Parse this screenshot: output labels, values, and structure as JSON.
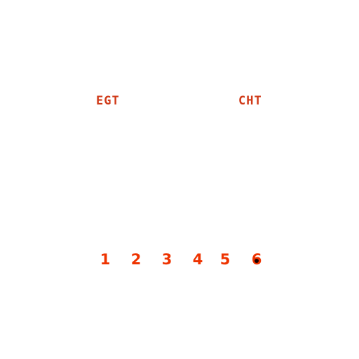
{
  "colors": {
    "background": "#ffffff",
    "label": "#d03a18",
    "cylinder": "#ee3300",
    "selected_marker": "#1a0000"
  },
  "labels": {
    "egt": "EGT",
    "cht": "CHT"
  },
  "cylinders": [
    {
      "label": "1",
      "selected": false
    },
    {
      "label": "2",
      "selected": false
    },
    {
      "label": "3",
      "selected": false
    },
    {
      "label": "4",
      "selected": false
    },
    {
      "label": "5",
      "selected": false
    },
    {
      "label": "6",
      "selected": true
    }
  ]
}
